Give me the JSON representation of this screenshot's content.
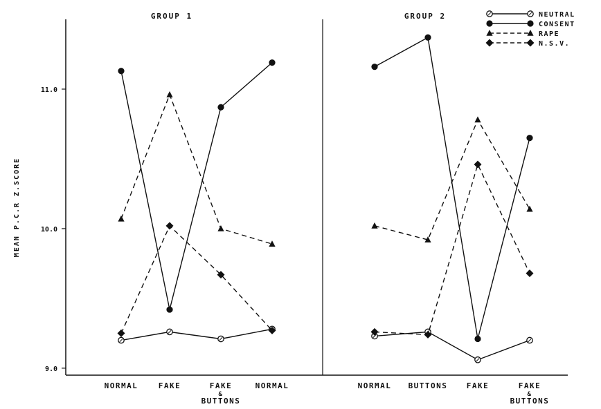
{
  "chart_data": {
    "type": "line",
    "ylabel": "MEAN  P.C.R  Z.SCORE",
    "ylim": [
      8.95,
      11.5
    ],
    "yticks": [
      {
        "value": 9.0,
        "label": "9.0"
      },
      {
        "value": 10.0,
        "label": "10.0"
      },
      {
        "value": 11.0,
        "label": "11.0"
      }
    ],
    "legend": {
      "position": "top-right",
      "entries": [
        {
          "name": "NEUTRAL",
          "marker": "open-circle",
          "dash": "solid"
        },
        {
          "name": "CONSENT",
          "marker": "filled-circle",
          "dash": "solid"
        },
        {
          "name": "RAPE",
          "marker": "triangle",
          "dash": "dashed"
        },
        {
          "name": "N.S.V.",
          "marker": "diamond",
          "dash": "dashed"
        }
      ]
    },
    "panels": [
      {
        "title": "GROUP 1",
        "categories": [
          [
            "NORMAL"
          ],
          [
            "FAKE"
          ],
          [
            "FAKE",
            "&",
            "BUTTONS"
          ],
          [
            "NORMAL"
          ]
        ],
        "series": [
          {
            "name": "NEUTRAL",
            "values": [
              9.2,
              9.26,
              9.21,
              9.28
            ]
          },
          {
            "name": "CONSENT",
            "values": [
              11.13,
              9.42,
              10.87,
              11.19
            ]
          },
          {
            "name": "RAPE",
            "values": [
              10.07,
              10.96,
              10.0,
              9.89
            ]
          },
          {
            "name": "N.S.V.",
            "values": [
              9.25,
              10.02,
              9.67,
              9.27
            ]
          }
        ]
      },
      {
        "title": "GROUP 2",
        "categories": [
          [
            "NORMAL"
          ],
          [
            "BUTTONS"
          ],
          [
            "FAKE"
          ],
          [
            "FAKE",
            "&",
            "BUTTONS"
          ]
        ],
        "series": [
          {
            "name": "NEUTRAL",
            "values": [
              9.23,
              9.26,
              9.06,
              9.2
            ]
          },
          {
            "name": "CONSENT",
            "values": [
              11.16,
              11.37,
              9.21,
              10.65
            ]
          },
          {
            "name": "RAPE",
            "values": [
              10.02,
              9.92,
              10.78,
              10.14
            ]
          },
          {
            "name": "N.S.V.",
            "values": [
              9.26,
              9.24,
              10.46,
              9.68
            ]
          }
        ]
      }
    ]
  }
}
